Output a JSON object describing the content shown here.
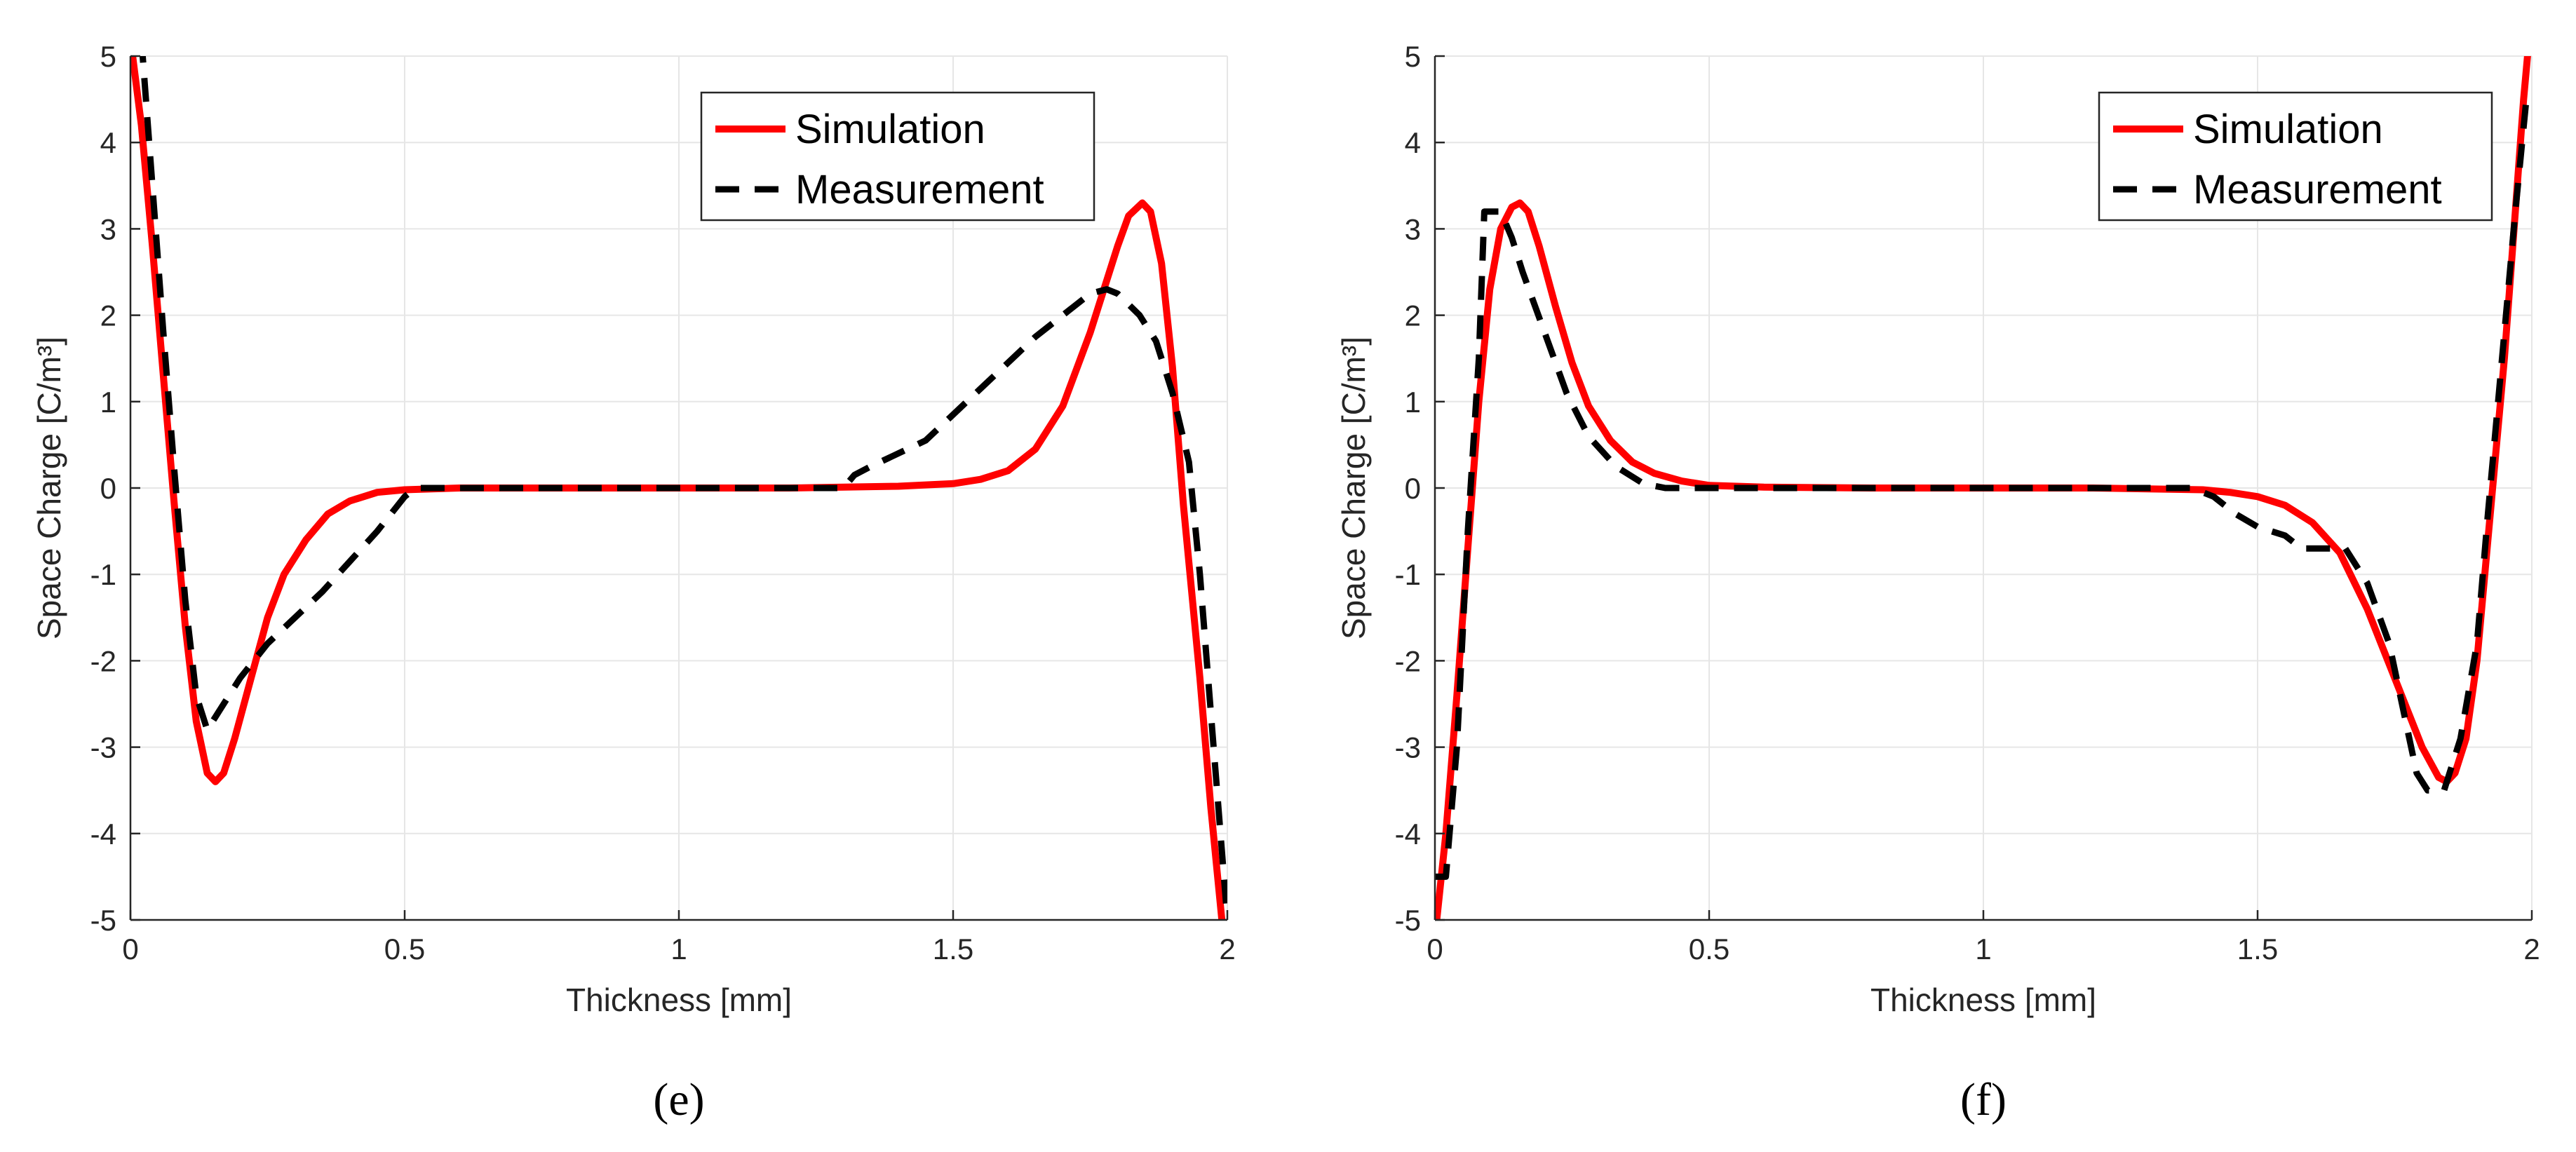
{
  "chart_data": [
    {
      "type": "line",
      "panel_label": "(e)",
      "xlabel": "Thickness [mm]",
      "ylabel": "Space Charge [C/m³]",
      "xlim": [
        0,
        2
      ],
      "ylim": [
        -5,
        5
      ],
      "xticks": [
        0,
        0.5,
        1,
        1.5,
        2
      ],
      "xtick_labels": [
        "0",
        "0.5",
        "1",
        "1.5",
        "2"
      ],
      "yticks": [
        5,
        4,
        3,
        2,
        1,
        0,
        -1,
        -2,
        -3,
        -4,
        -5
      ],
      "ytick_labels": [
        "5",
        "4",
        "3",
        "2",
        "1",
        "0",
        "-1",
        "-2",
        "-3",
        "-4",
        "-5"
      ],
      "grid": true,
      "legend_position": "top-right",
      "series": [
        {
          "name": "Simulation",
          "color": "#ff0000",
          "style": "solid",
          "points": [
            [
              0,
              5.2
            ],
            [
              0.02,
              4.2
            ],
            [
              0.04,
              2.8
            ],
            [
              0.06,
              1.3
            ],
            [
              0.08,
              -0.2
            ],
            [
              0.1,
              -1.6
            ],
            [
              0.12,
              -2.7
            ],
            [
              0.14,
              -3.3
            ],
            [
              0.155,
              -3.4
            ],
            [
              0.17,
              -3.3
            ],
            [
              0.19,
              -2.9
            ],
            [
              0.22,
              -2.2
            ],
            [
              0.25,
              -1.5
            ],
            [
              0.28,
              -1.0
            ],
            [
              0.32,
              -0.6
            ],
            [
              0.36,
              -0.3
            ],
            [
              0.4,
              -0.15
            ],
            [
              0.45,
              -0.05
            ],
            [
              0.5,
              -0.02
            ],
            [
              0.6,
              0
            ],
            [
              0.8,
              0
            ],
            [
              1.0,
              0
            ],
            [
              1.2,
              0
            ],
            [
              1.3,
              0.01
            ],
            [
              1.4,
              0.02
            ],
            [
              1.5,
              0.05
            ],
            [
              1.55,
              0.1
            ],
            [
              1.6,
              0.2
            ],
            [
              1.65,
              0.45
            ],
            [
              1.7,
              0.95
            ],
            [
              1.75,
              1.8
            ],
            [
              1.8,
              2.8
            ],
            [
              1.82,
              3.15
            ],
            [
              1.845,
              3.3
            ],
            [
              1.86,
              3.2
            ],
            [
              1.88,
              2.6
            ],
            [
              1.9,
              1.4
            ],
            [
              1.92,
              -0.2
            ],
            [
              1.95,
              -2.2
            ],
            [
              1.97,
              -3.7
            ],
            [
              1.99,
              -5
            ]
          ]
        },
        {
          "name": "Measurement",
          "color": "#000000",
          "style": "dashed",
          "points": [
            [
              0.02,
              5.2
            ],
            [
              0.04,
              3.5
            ],
            [
              0.06,
              1.8
            ],
            [
              0.08,
              0.2
            ],
            [
              0.1,
              -1.3
            ],
            [
              0.12,
              -2.4
            ],
            [
              0.14,
              -2.8
            ],
            [
              0.16,
              -2.6
            ],
            [
              0.2,
              -2.2
            ],
            [
              0.25,
              -1.8
            ],
            [
              0.3,
              -1.5
            ],
            [
              0.35,
              -1.2
            ],
            [
              0.4,
              -0.85
            ],
            [
              0.45,
              -0.5
            ],
            [
              0.5,
              -0.1
            ],
            [
              0.52,
              0
            ],
            [
              0.6,
              0
            ],
            [
              0.8,
              0
            ],
            [
              1.0,
              0
            ],
            [
              1.2,
              0
            ],
            [
              1.3,
              0
            ],
            [
              1.32,
              0.15
            ],
            [
              1.35,
              0.25
            ],
            [
              1.4,
              0.4
            ],
            [
              1.45,
              0.55
            ],
            [
              1.5,
              0.85
            ],
            [
              1.55,
              1.15
            ],
            [
              1.6,
              1.45
            ],
            [
              1.65,
              1.75
            ],
            [
              1.7,
              2.0
            ],
            [
              1.75,
              2.25
            ],
            [
              1.78,
              2.3
            ],
            [
              1.8,
              2.25
            ],
            [
              1.84,
              2.0
            ],
            [
              1.87,
              1.7
            ],
            [
              1.9,
              1.1
            ],
            [
              1.93,
              0.3
            ],
            [
              1.95,
              -1.0
            ],
            [
              1.97,
              -2.6
            ],
            [
              1.99,
              -4.2
            ],
            [
              2.0,
              -5
            ]
          ]
        }
      ]
    },
    {
      "type": "line",
      "panel_label": "(f)",
      "xlabel": "Thickness [mm]",
      "ylabel": "Space Charge [C/m³]",
      "xlim": [
        0,
        2
      ],
      "ylim": [
        -5,
        5
      ],
      "xticks": [
        0,
        0.5,
        1,
        1.5,
        2
      ],
      "xtick_labels": [
        "0",
        "0.5",
        "1",
        "1.5",
        "2"
      ],
      "yticks": [
        5,
        4,
        3,
        2,
        1,
        0,
        -1,
        -2,
        -3,
        -4,
        -5
      ],
      "ytick_labels": [
        "5",
        "4",
        "3",
        "2",
        "1",
        "0",
        "-1",
        "-2",
        "-3",
        "-4",
        "-5"
      ],
      "grid": true,
      "legend_position": "top-right",
      "series": [
        {
          "name": "Simulation",
          "color": "#ff0000",
          "style": "solid",
          "points": [
            [
              0,
              -5.2
            ],
            [
              0.02,
              -4.0
            ],
            [
              0.04,
              -2.4
            ],
            [
              0.06,
              -0.7
            ],
            [
              0.08,
              1.0
            ],
            [
              0.1,
              2.3
            ],
            [
              0.12,
              3.0
            ],
            [
              0.14,
              3.25
            ],
            [
              0.155,
              3.3
            ],
            [
              0.17,
              3.2
            ],
            [
              0.19,
              2.8
            ],
            [
              0.22,
              2.1
            ],
            [
              0.25,
              1.45
            ],
            [
              0.28,
              0.95
            ],
            [
              0.32,
              0.55
            ],
            [
              0.36,
              0.3
            ],
            [
              0.4,
              0.17
            ],
            [
              0.45,
              0.08
            ],
            [
              0.5,
              0.03
            ],
            [
              0.6,
              0.01
            ],
            [
              0.8,
              0
            ],
            [
              1.0,
              0
            ],
            [
              1.2,
              0
            ],
            [
              1.3,
              -0.01
            ],
            [
              1.4,
              -0.02
            ],
            [
              1.45,
              -0.05
            ],
            [
              1.5,
              -0.1
            ],
            [
              1.55,
              -0.2
            ],
            [
              1.6,
              -0.4
            ],
            [
              1.65,
              -0.75
            ],
            [
              1.7,
              -1.4
            ],
            [
              1.75,
              -2.2
            ],
            [
              1.8,
              -3.0
            ],
            [
              1.83,
              -3.35
            ],
            [
              1.845,
              -3.4
            ],
            [
              1.86,
              -3.3
            ],
            [
              1.88,
              -2.9
            ],
            [
              1.9,
              -2.0
            ],
            [
              1.92,
              -0.6
            ],
            [
              1.95,
              1.5
            ],
            [
              1.97,
              3.2
            ],
            [
              1.985,
              4.5
            ],
            [
              1.995,
              5.2
            ]
          ]
        },
        {
          "name": "Measurement",
          "color": "#000000",
          "style": "dashed",
          "points": [
            [
              0,
              -4.5
            ],
            [
              0.02,
              -4.5
            ],
            [
              0.04,
              -3.0
            ],
            [
              0.06,
              -0.5
            ],
            [
              0.08,
              1.5
            ],
            [
              0.09,
              3.2
            ],
            [
              0.12,
              3.2
            ],
            [
              0.14,
              2.9
            ],
            [
              0.16,
              2.5
            ],
            [
              0.2,
              1.8
            ],
            [
              0.24,
              1.1
            ],
            [
              0.28,
              0.6
            ],
            [
              0.33,
              0.25
            ],
            [
              0.38,
              0.05
            ],
            [
              0.42,
              0
            ],
            [
              0.5,
              0
            ],
            [
              0.8,
              0
            ],
            [
              1.0,
              0
            ],
            [
              1.2,
              0
            ],
            [
              1.38,
              0
            ],
            [
              1.42,
              -0.1
            ],
            [
              1.46,
              -0.3
            ],
            [
              1.5,
              -0.45
            ],
            [
              1.55,
              -0.55
            ],
            [
              1.58,
              -0.7
            ],
            [
              1.66,
              -0.7
            ],
            [
              1.7,
              -1.1
            ],
            [
              1.74,
              -1.8
            ],
            [
              1.77,
              -2.7
            ],
            [
              1.79,
              -3.3
            ],
            [
              1.81,
              -3.5
            ],
            [
              1.84,
              -3.5
            ],
            [
              1.87,
              -2.9
            ],
            [
              1.9,
              -1.8
            ],
            [
              1.92,
              -0.3
            ],
            [
              1.95,
              1.8
            ],
            [
              1.97,
              3.2
            ],
            [
              1.99,
              4.5
            ],
            [
              2.0,
              4.5
            ]
          ]
        }
      ]
    }
  ]
}
